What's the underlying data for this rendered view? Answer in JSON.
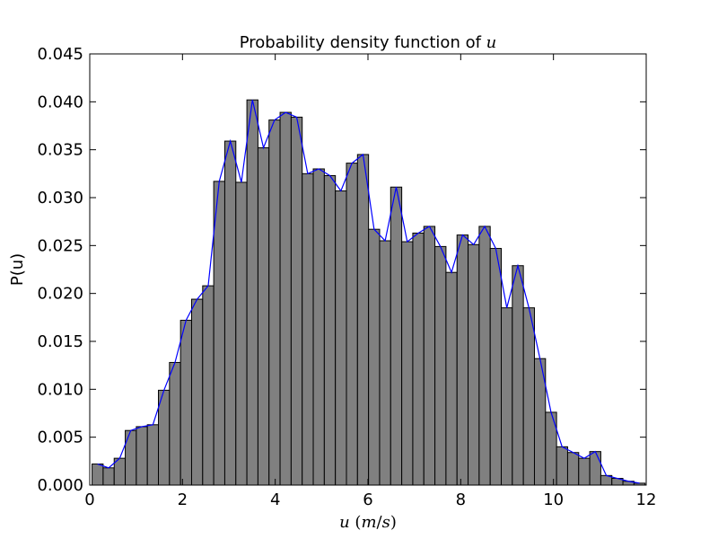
{
  "chart_data": {
    "type": "bar",
    "title": {
      "prefix": "Probability density function of ",
      "var": "u"
    },
    "xlabel": {
      "var": "u",
      "open": " (",
      "num": "m",
      "slash": "/",
      "den": "s",
      "close": ")"
    },
    "ylabel": "P(u)",
    "xlim": [
      0,
      12
    ],
    "ylim": [
      0,
      0.045
    ],
    "x_ticks": [
      0,
      2,
      4,
      6,
      8,
      10,
      12
    ],
    "x_tick_labels": [
      "0",
      "2",
      "4",
      "6",
      "8",
      "10",
      "12"
    ],
    "y_ticks": [
      0,
      0.005,
      0.01,
      0.015,
      0.02,
      0.025,
      0.03,
      0.035,
      0.04,
      0.045
    ],
    "y_tick_labels": [
      "0.000",
      "0.005",
      "0.010",
      "0.015",
      "0.020",
      "0.025",
      "0.030",
      "0.035",
      "0.040",
      "0.045"
    ],
    "grid": false,
    "bar_color": "#808080",
    "line_color": "#0000ff",
    "bin_start": 0.05,
    "bin_width": 0.2385,
    "values": [
      0.0022,
      0.0018,
      0.0028,
      0.0057,
      0.0061,
      0.0063,
      0.0099,
      0.0128,
      0.0172,
      0.0194,
      0.0208,
      0.0317,
      0.0359,
      0.0316,
      0.0402,
      0.0352,
      0.0381,
      0.0389,
      0.0384,
      0.0325,
      0.033,
      0.0323,
      0.0307,
      0.0336,
      0.0345,
      0.0267,
      0.0255,
      0.0311,
      0.0254,
      0.0263,
      0.027,
      0.0249,
      0.0222,
      0.0261,
      0.0251,
      0.027,
      0.0247,
      0.0185,
      0.0229,
      0.0185,
      0.0132,
      0.0076,
      0.004,
      0.0034,
      0.0028,
      0.0035,
      0.001,
      0.0007,
      0.0004,
      0.0002
    ]
  }
}
